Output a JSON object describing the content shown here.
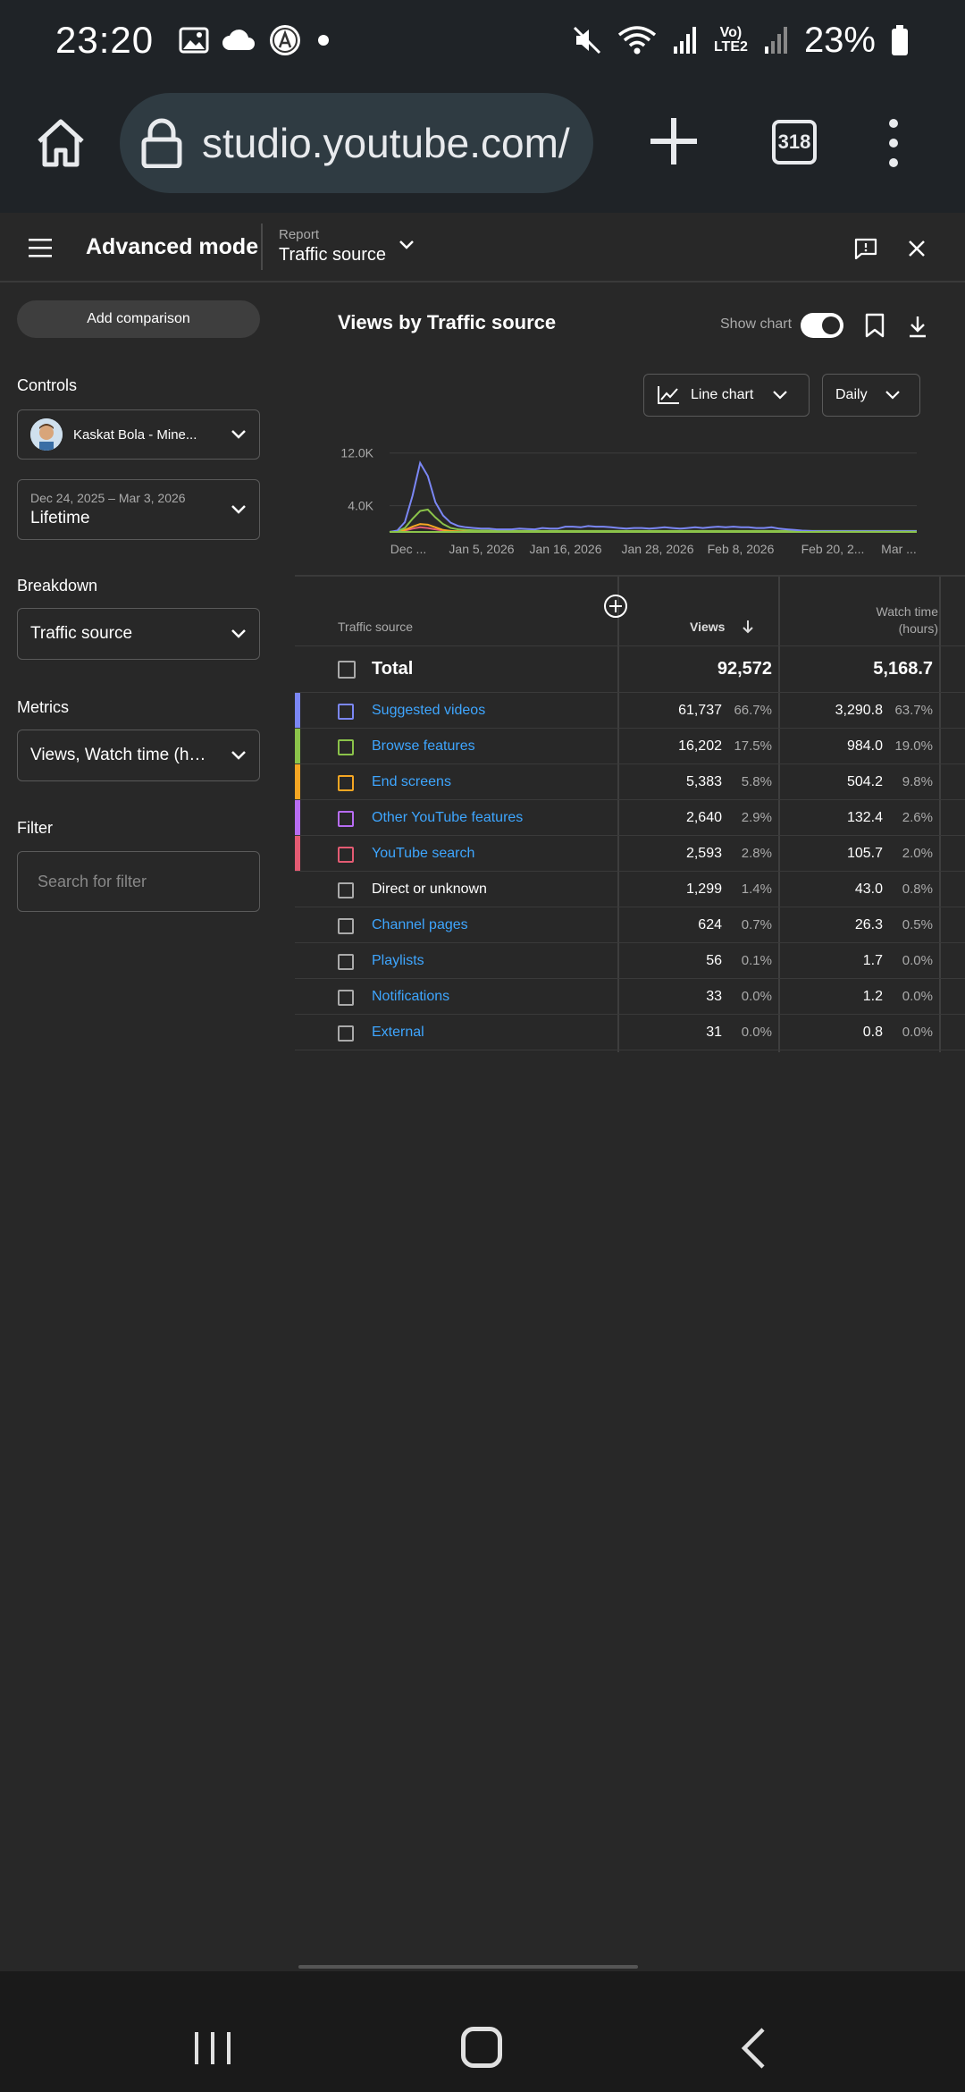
{
  "status_bar": {
    "time": "23:20",
    "battery": "23%",
    "network_label": "Vo) LTE2"
  },
  "browser": {
    "url": "studio.youtube.com/",
    "tab_count": "318"
  },
  "header": {
    "title": "Advanced mode",
    "report_label": "Report",
    "report_value": "Traffic source"
  },
  "left_panel": {
    "add_comparison": "Add comparison",
    "controls_title": "Controls",
    "channel": "Kaskat Bola - Mine...",
    "date_range": "Dec 24, 2025 – Mar 3, 2026",
    "date_preset": "Lifetime",
    "breakdown_title": "Breakdown",
    "breakdown_value": "Traffic source",
    "metrics_title": "Metrics",
    "metrics_value": "Views, Watch time (ho...",
    "filter_title": "Filter",
    "filter_placeholder": "Search for filter"
  },
  "main": {
    "title": "Views by Traffic source",
    "show_chart_label": "Show chart",
    "chart_type": "Line chart",
    "granularity": "Daily"
  },
  "chart_data": {
    "type": "line",
    "x_tick_labels": [
      "Dec ...",
      "Jan 5, 2026",
      "Jan 16, 2026",
      "Jan 28, 2026",
      "Feb 8, 2026",
      "Feb 20, 2...",
      "Mar ..."
    ],
    "y_tick_labels": [
      "12.0K",
      "4.0K"
    ],
    "ylim": [
      0,
      14000
    ],
    "series": [
      {
        "name": "Suggested videos",
        "color": "#7b87f5",
        "values": [
          0,
          200,
          1500,
          5500,
          10500,
          8500,
          4500,
          2500,
          1400,
          900,
          700,
          600,
          500,
          500,
          400,
          400,
          400,
          500,
          450,
          400,
          600,
          500,
          500,
          800,
          800,
          700,
          900,
          800,
          800,
          700,
          600,
          500,
          600,
          600,
          500,
          600,
          700,
          600,
          500,
          600,
          700,
          600,
          700,
          800,
          700,
          800,
          700,
          700,
          600,
          600,
          700,
          500,
          400,
          300,
          200,
          150,
          100,
          100,
          100,
          100,
          100,
          100,
          100,
          100,
          100,
          100,
          100,
          100,
          100,
          100
        ]
      },
      {
        "name": "Browse features",
        "color": "#8bc34a",
        "values": [
          0,
          100,
          600,
          2000,
          3200,
          3400,
          2200,
          1200,
          600,
          400,
          300,
          250,
          200,
          200,
          150,
          150,
          150,
          150,
          150,
          150,
          150,
          150,
          150,
          150,
          150,
          150,
          150,
          150,
          150,
          150,
          150,
          150,
          150,
          150,
          150,
          150,
          150,
          150,
          150,
          150,
          150,
          150,
          150,
          150,
          150,
          150,
          150,
          150,
          150,
          150,
          150,
          150,
          150,
          150,
          150,
          150,
          150,
          150,
          150,
          150,
          150,
          150,
          150,
          150,
          150,
          150,
          150,
          150,
          150,
          150
        ]
      },
      {
        "name": "End screens",
        "color": "#f5a623",
        "values": [
          0,
          50,
          300,
          800,
          1200,
          1100,
          700,
          300,
          150,
          100,
          80,
          60,
          50,
          50,
          50,
          50,
          50,
          50,
          50,
          50,
          50,
          50,
          50,
          50,
          50,
          50,
          50,
          50,
          50,
          50,
          50,
          50,
          50,
          50,
          50,
          50,
          50,
          50,
          50,
          50,
          50,
          50,
          50,
          50,
          50,
          50,
          50,
          50,
          50,
          50,
          50,
          50,
          50,
          50,
          50,
          50,
          50,
          50,
          50,
          50,
          50,
          50,
          50,
          50,
          50,
          50,
          50,
          50,
          50,
          50
        ]
      },
      {
        "name": "YouTube search",
        "color": "#e45b73",
        "values": [
          0,
          30,
          200,
          500,
          700,
          600,
          400,
          200,
          100,
          80,
          60,
          50,
          40,
          40,
          40,
          40,
          40,
          40,
          40,
          40,
          40,
          40,
          40,
          40,
          40,
          40,
          40,
          40,
          40,
          40,
          40,
          40,
          40,
          40,
          40,
          40,
          40,
          40,
          40,
          40,
          40,
          40,
          40,
          40,
          40,
          40,
          40,
          40,
          40,
          40,
          40,
          40,
          40,
          40,
          40,
          40,
          40,
          40,
          40,
          40,
          40,
          40,
          40,
          40,
          40,
          40,
          40,
          40,
          40,
          40
        ]
      }
    ]
  },
  "table": {
    "col_source": "Traffic source",
    "col_views": "Views",
    "col_watch_line1": "Watch time",
    "col_watch_line2": "(hours)",
    "total": {
      "name": "Total",
      "views": "92,572",
      "watch": "5,168.7"
    },
    "rows": [
      {
        "name": "Suggested videos",
        "views": "61,737",
        "views_pct": "66.7%",
        "watch": "3,290.8",
        "watch_pct": "63.7%",
        "color": "#7b87f5",
        "link": true
      },
      {
        "name": "Browse features",
        "views": "16,202",
        "views_pct": "17.5%",
        "watch": "984.0",
        "watch_pct": "19.0%",
        "color": "#8bc34a",
        "link": true
      },
      {
        "name": "End screens",
        "views": "5,383",
        "views_pct": "5.8%",
        "watch": "504.2",
        "watch_pct": "9.8%",
        "color": "#f5a623",
        "link": true
      },
      {
        "name": "Other YouTube features",
        "views": "2,640",
        "views_pct": "2.9%",
        "watch": "132.4",
        "watch_pct": "2.6%",
        "color": "#b76cf2",
        "link": true
      },
      {
        "name": "YouTube search",
        "views": "2,593",
        "views_pct": "2.8%",
        "watch": "105.7",
        "watch_pct": "2.0%",
        "color": "#e45b73",
        "link": true
      },
      {
        "name": "Direct or unknown",
        "views": "1,299",
        "views_pct": "1.4%",
        "watch": "43.0",
        "watch_pct": "0.8%",
        "color": "",
        "link": false
      },
      {
        "name": "Channel pages",
        "views": "624",
        "views_pct": "0.7%",
        "watch": "26.3",
        "watch_pct": "0.5%",
        "color": "",
        "link": true
      },
      {
        "name": "Playlists",
        "views": "56",
        "views_pct": "0.1%",
        "watch": "1.7",
        "watch_pct": "0.0%",
        "color": "",
        "link": true
      },
      {
        "name": "Notifications",
        "views": "33",
        "views_pct": "0.0%",
        "watch": "1.2",
        "watch_pct": "0.0%",
        "color": "",
        "link": true
      },
      {
        "name": "External",
        "views": "31",
        "views_pct": "0.0%",
        "watch": "0.8",
        "watch_pct": "0.0%",
        "color": "",
        "link": true
      }
    ]
  }
}
